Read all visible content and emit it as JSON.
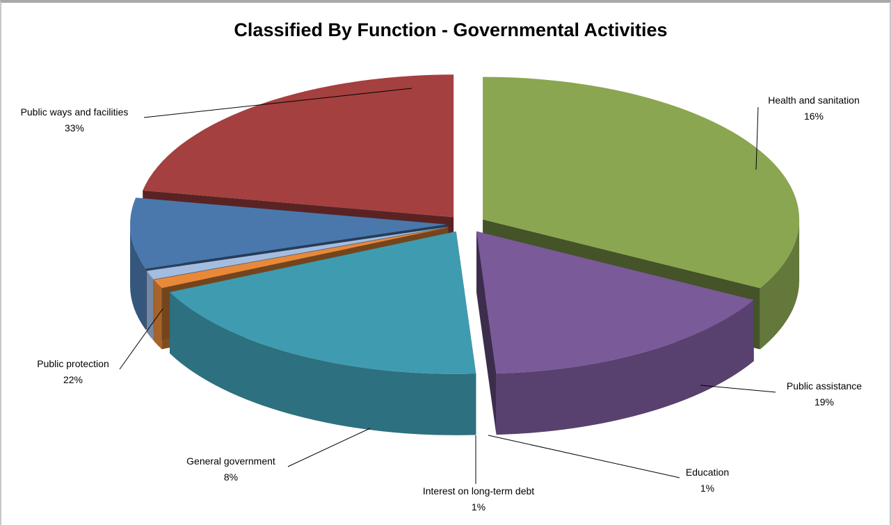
{
  "chart_data": {
    "type": "pie",
    "style": "3d-exploded",
    "title": "Classified By Function - Governmental Activities",
    "unit": "%",
    "legend": "none",
    "slices": [
      {
        "name": "Public ways and facilities",
        "value": 33,
        "label": "33%",
        "color": "#8aa650"
      },
      {
        "name": "Health and sanitation",
        "value": 16,
        "label": "16%",
        "color": "#7a5a99"
      },
      {
        "name": "Public assistance",
        "value": 19,
        "label": "19%",
        "color": "#3f9bb0"
      },
      {
        "name": "Education",
        "value": 1,
        "label": "1%",
        "color": "#e8893a"
      },
      {
        "name": "Interest on long-term debt",
        "value": 1,
        "label": "1%",
        "color": "#a4bcdf"
      },
      {
        "name": "General government",
        "value": 8,
        "label": "8%",
        "color": "#4a78ad"
      },
      {
        "name": "Public protection",
        "value": 22,
        "label": "22%",
        "color": "#a4403f"
      }
    ]
  }
}
